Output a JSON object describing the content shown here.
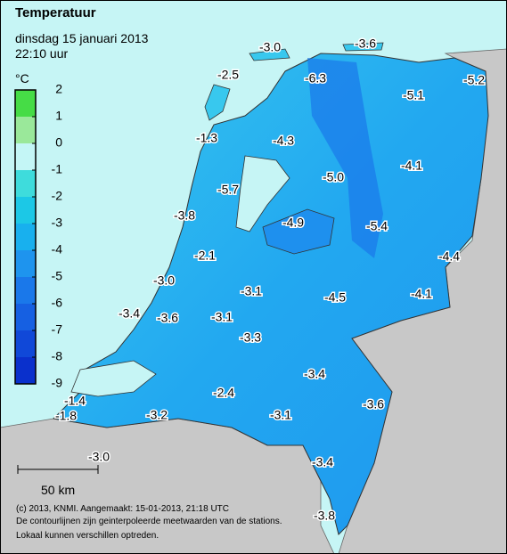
{
  "header": {
    "title": "Temperatuur",
    "date": "dinsdag 15 januari 2013",
    "time": "22:10 uur"
  },
  "legend": {
    "unit": "°C",
    "ticks": [
      2,
      1,
      0,
      -1,
      -2,
      -3,
      -4,
      -5,
      -6,
      -7,
      -8,
      -9
    ],
    "colors": [
      "#46dc46",
      "#9ae89a",
      "#c4f6f6",
      "#3edcdc",
      "#1cc8e6",
      "#18b0ee",
      "#1e94ee",
      "#1a78ea",
      "#1660e2",
      "#1048d8",
      "#0a30cc"
    ]
  },
  "stations": [
    "-3.0",
    "-3.6",
    "-2.5",
    "-6.3",
    "-5.1",
    "-5.2",
    "-1.3",
    "-4.3",
    "-4.1",
    "-5.7",
    "-5.0",
    "-3.8",
    "-4.9",
    "-5.4",
    "-2.1",
    "-4.4",
    "-3.0",
    "-3.1",
    "-4.5",
    "-4.1",
    "-3.4",
    "-3.6",
    "-3.1",
    "-3.3",
    "-3.4",
    "-2.4",
    "-1.4",
    "-3.6",
    "-1.8",
    "-3.2",
    "-3.1",
    "-3.0",
    "-3.4",
    "-3.8"
  ],
  "scale": "50 km",
  "footer": [
    "(c) 2013, KNMI. Aangemaakt: 15-01-2013, 21:18 UTC",
    "De contourlijnen zijn geinterpoleerde meetwaarden van de stations.",
    "Lokaal kunnen verschillen optreden."
  ]
}
